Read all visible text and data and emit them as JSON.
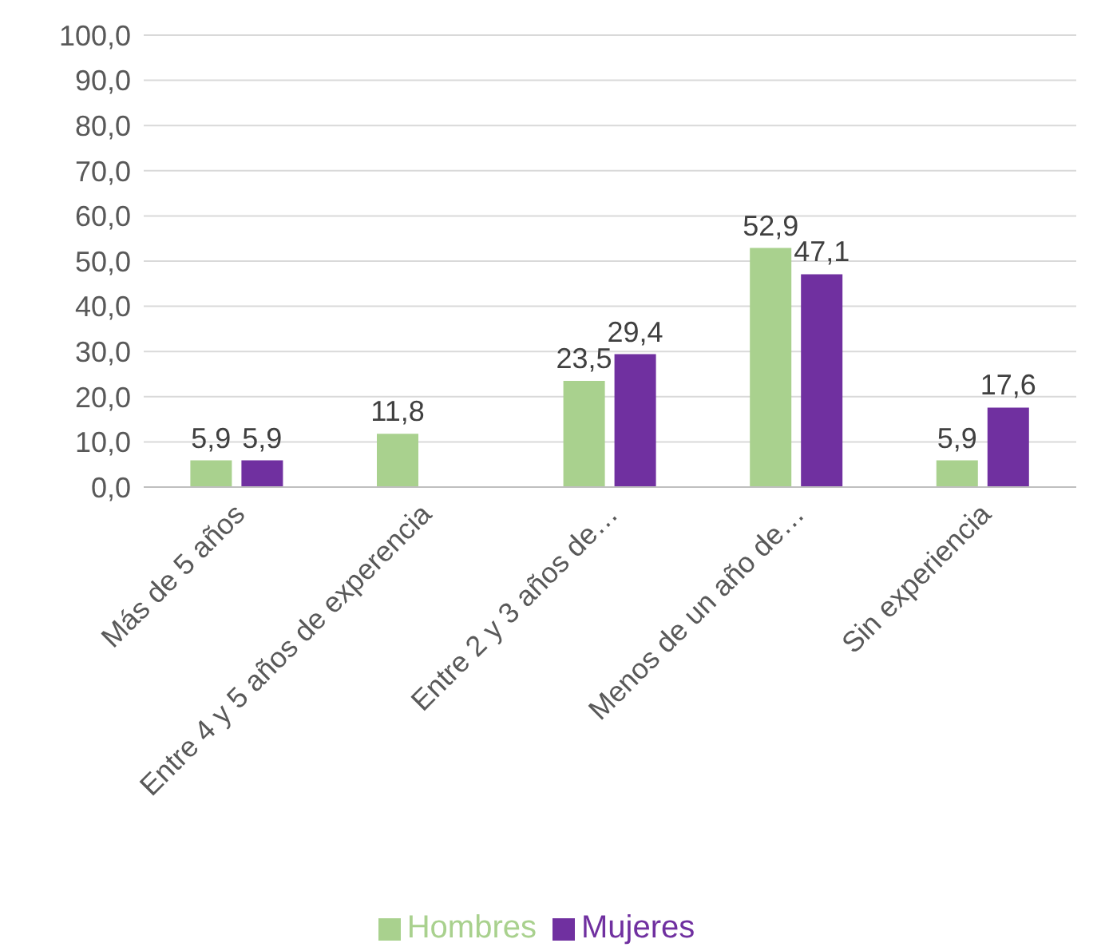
{
  "chart_data": {
    "type": "bar",
    "categories": [
      "Más de 5 años",
      "Entre 4 y 5 años de experencia",
      "Entre 2 y 3 años de…",
      "Menos de un año de…",
      "Sin experiencia"
    ],
    "series": [
      {
        "name": "Hombres",
        "color": "#a9d18e",
        "values": [
          5.9,
          11.8,
          23.5,
          52.9,
          5.9
        ],
        "value_labels": [
          "5,9",
          "11,8",
          "23,5",
          "52,9",
          "5,9"
        ]
      },
      {
        "name": "Mujeres",
        "color": "#7030a0",
        "values": [
          5.9,
          null,
          29.4,
          47.1,
          17.6
        ],
        "value_labels": [
          "5,9",
          null,
          "29,4",
          "47,1",
          "17,6"
        ]
      }
    ],
    "ylim": [
      0,
      100
    ],
    "yticks": [
      {
        "value": 0,
        "label": "0,0"
      },
      {
        "value": 10,
        "label": "10,0"
      },
      {
        "value": 20,
        "label": "20,0"
      },
      {
        "value": 30,
        "label": "30,0"
      },
      {
        "value": 40,
        "label": "40,0"
      },
      {
        "value": 50,
        "label": "50,0"
      },
      {
        "value": 60,
        "label": "60,0"
      },
      {
        "value": 70,
        "label": "70,0"
      },
      {
        "value": 80,
        "label": "80,0"
      },
      {
        "value": 90,
        "label": "90,0"
      },
      {
        "value": 100,
        "label": "100,0"
      }
    ],
    "grid": "y",
    "legend": "bottom"
  }
}
